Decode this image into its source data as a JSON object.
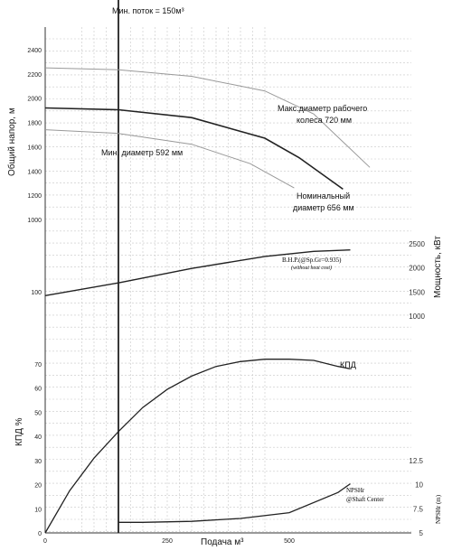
{
  "chart_data": {
    "type": "line",
    "top_label": "Мин. поток = 150м³",
    "xlabel": "Подача м³",
    "x_ticks": [
      "0",
      "250",
      "500"
    ],
    "xlim": [
      0,
      750
    ],
    "head": {
      "ylabel": "Общий напор, м",
      "y_ticks": [
        "2400",
        "2200",
        "2000",
        "1800",
        "1600",
        "1400",
        "1200",
        "1000"
      ],
      "ylim": [
        900,
        2500
      ],
      "series": [
        {
          "name": "Макс.диаметр рабочего колеса 720 мм",
          "x": [
            0,
            150,
            300,
            450,
            550,
            665
          ],
          "y": [
            2250,
            2235,
            2180,
            2060,
            1870,
            1430
          ]
        },
        {
          "name": "Номинальный диаметр 656 мм",
          "x": [
            0,
            150,
            300,
            450,
            520,
            610
          ],
          "y": [
            1920,
            1905,
            1840,
            1670,
            1510,
            1250
          ]
        },
        {
          "name": "Мин. диаметр 592 мм",
          "x": [
            0,
            150,
            300,
            420,
            510
          ],
          "y": [
            1740,
            1710,
            1620,
            1460,
            1260
          ]
        }
      ]
    },
    "power": {
      "ylabel": "Мощность, кВт",
      "y_ticks": [
        "2500",
        "2000",
        "1500",
        "1000"
      ],
      "ylim": [
        1000,
        2500
      ],
      "left_tick": "100",
      "series_label": "B.H.P.(@Sp.Gr=0.935)",
      "series_note": "(without heat cost)",
      "x": [
        0,
        150,
        300,
        450,
        550,
        625
      ],
      "y": [
        1425,
        1690,
        1990,
        2240,
        2345,
        2375
      ]
    },
    "efficiency": {
      "ylabel": "КПД %",
      "y_ticks": [
        "70",
        "60",
        "50",
        "40",
        "30",
        "20",
        "10",
        "0"
      ],
      "ylim": [
        0,
        80
      ],
      "series_label": "КПД",
      "x": [
        0,
        50,
        100,
        150,
        200,
        250,
        300,
        350,
        400,
        450,
        500,
        550,
        600,
        625
      ],
      "y": [
        0,
        17.5,
        31,
        42,
        52,
        59.5,
        65,
        69,
        71,
        72,
        72,
        71.5,
        69,
        68
      ]
    },
    "npsh": {
      "ylabel": "NPSHr (m)",
      "y_ticks": [
        "12.5",
        "10",
        "7.5",
        "5"
      ],
      "ylim": [
        5,
        12.5
      ],
      "series_label": "NPSHr",
      "series_note": "@Shaft Center",
      "x": [
        150,
        200,
        300,
        400,
        500,
        600,
        625
      ],
      "y": [
        6.1,
        6.1,
        6.2,
        6.5,
        7.1,
        9.2,
        10.1
      ]
    },
    "grid": true
  }
}
